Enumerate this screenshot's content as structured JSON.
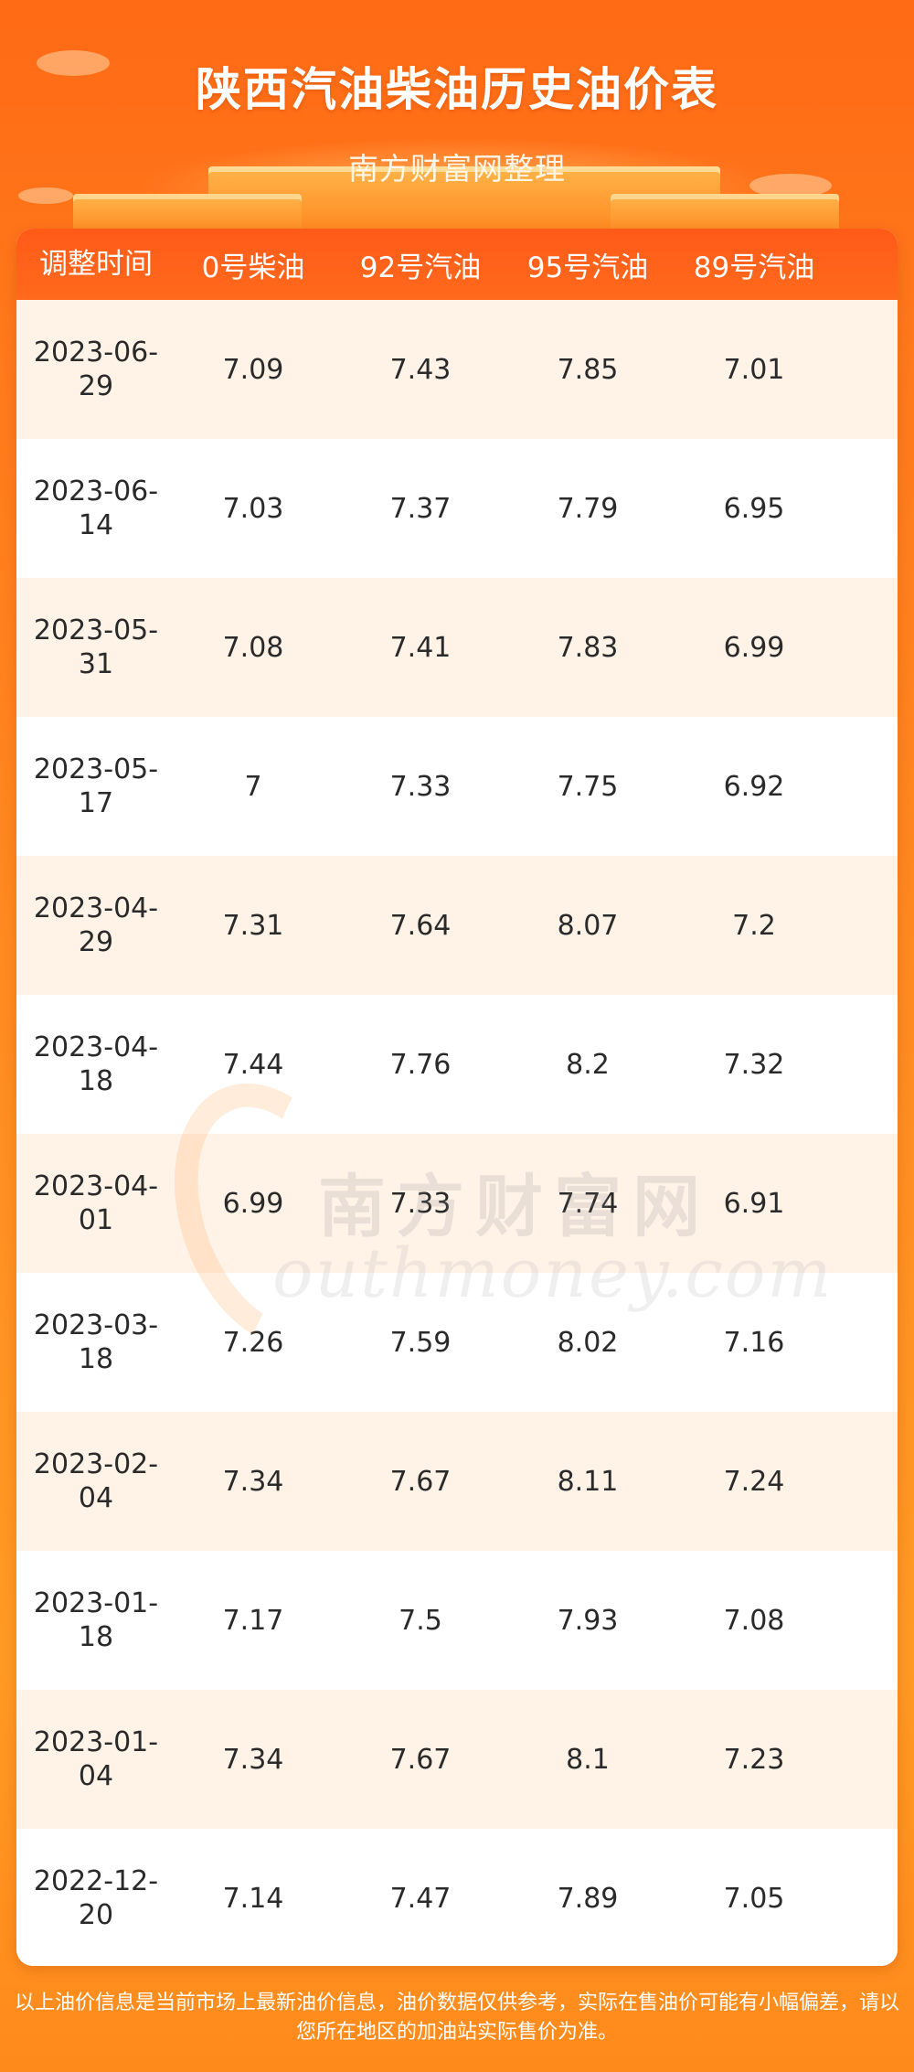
{
  "header": {
    "title": "陕西汽油柴油历史油价表",
    "subtitle": "南方财富网整理"
  },
  "table": {
    "columns": [
      "调整时间",
      "0号柴油",
      "92号汽油",
      "95号汽油",
      "89号汽油"
    ],
    "rows": [
      {
        "date_line1": "2023-06-",
        "date_line2": "29",
        "diesel0": "7.09",
        "gas92": "7.43",
        "gas95": "7.85",
        "gas89": "7.01"
      },
      {
        "date_line1": "2023-06-",
        "date_line2": "14",
        "diesel0": "7.03",
        "gas92": "7.37",
        "gas95": "7.79",
        "gas89": "6.95"
      },
      {
        "date_line1": "2023-05-",
        "date_line2": "31",
        "diesel0": "7.08",
        "gas92": "7.41",
        "gas95": "7.83",
        "gas89": "6.99"
      },
      {
        "date_line1": "2023-05-",
        "date_line2": "17",
        "diesel0": "7",
        "gas92": "7.33",
        "gas95": "7.75",
        "gas89": "6.92"
      },
      {
        "date_line1": "2023-04-",
        "date_line2": "29",
        "diesel0": "7.31",
        "gas92": "7.64",
        "gas95": "8.07",
        "gas89": "7.2"
      },
      {
        "date_line1": "2023-04-",
        "date_line2": "18",
        "diesel0": "7.44",
        "gas92": "7.76",
        "gas95": "8.2",
        "gas89": "7.32"
      },
      {
        "date_line1": "2023-04-",
        "date_line2": "01",
        "diesel0": "6.99",
        "gas92": "7.33",
        "gas95": "7.74",
        "gas89": "6.91"
      },
      {
        "date_line1": "2023-03-",
        "date_line2": "18",
        "diesel0": "7.26",
        "gas92": "7.59",
        "gas95": "8.02",
        "gas89": "7.16"
      },
      {
        "date_line1": "2023-02-",
        "date_line2": "04",
        "diesel0": "7.34",
        "gas92": "7.67",
        "gas95": "8.11",
        "gas89": "7.24"
      },
      {
        "date_line1": "2023-01-",
        "date_line2": "18",
        "diesel0": "7.17",
        "gas92": "7.5",
        "gas95": "7.93",
        "gas89": "7.08"
      },
      {
        "date_line1": "2023-01-",
        "date_line2": "04",
        "diesel0": "7.34",
        "gas92": "7.67",
        "gas95": "8.1",
        "gas89": "7.23"
      },
      {
        "date_line1": "2022-12-",
        "date_line2": "20",
        "diesel0": "7.14",
        "gas92": "7.47",
        "gas95": "7.89",
        "gas89": "7.05"
      }
    ]
  },
  "watermark": {
    "cn": "南方财富网",
    "en": "outhmoney.com"
  },
  "footer": {
    "note": "以上油价信息是当前市场上最新油价信息，油价数据仅供参考，实际在售油价可能有小幅偏差，请以您所在地区的加油站实际售价为准。"
  },
  "colors": {
    "header_bg": "#ff5a18",
    "row_alt": "#fff3e8",
    "page_bg": "#ff8a1c"
  }
}
